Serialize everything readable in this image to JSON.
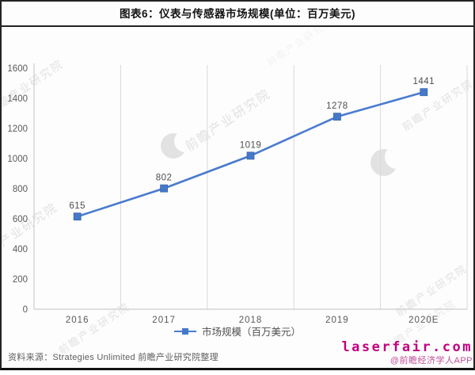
{
  "title": "图表6：仪表与传感器市场规模(单位：百万美元)",
  "chart_data": {
    "type": "line",
    "categories": [
      "2016",
      "2017",
      "2018",
      "2019",
      "2020E"
    ],
    "series": [
      {
        "name": "市场规模（百万美元）",
        "values": [
          615,
          802,
          1019,
          1278,
          1441
        ]
      }
    ],
    "title": "图表6：仪表与传感器市场规模(单位：百万美元)",
    "xlabel": "",
    "ylabel": "",
    "ylim": [
      0,
      1600
    ],
    "yticks": [
      0,
      200,
      400,
      600,
      800,
      1000,
      1200,
      1400,
      1600
    ],
    "grid": "vertical-only",
    "legend_position": "bottom-center",
    "show_data_labels": true,
    "line_color": "#4a7bce",
    "marker_color": "#4579c8",
    "data_label_color": "#4d4d4d",
    "tick_label_color": "#595959",
    "grid_color": "#d9d9d9",
    "axis_color": "#cccccc"
  },
  "legend": {
    "label": "市场规模（百万美元）"
  },
  "watermark": {
    "text": "前瞻产业研究院"
  },
  "footer": {
    "source": "资料来源：Strategies Unlimited 前瞻产业研究院整理",
    "site": "laserfair.com",
    "site_color": "#c0007f",
    "app": "@前瞻经济学人APP",
    "app_color": "#c2509a"
  }
}
